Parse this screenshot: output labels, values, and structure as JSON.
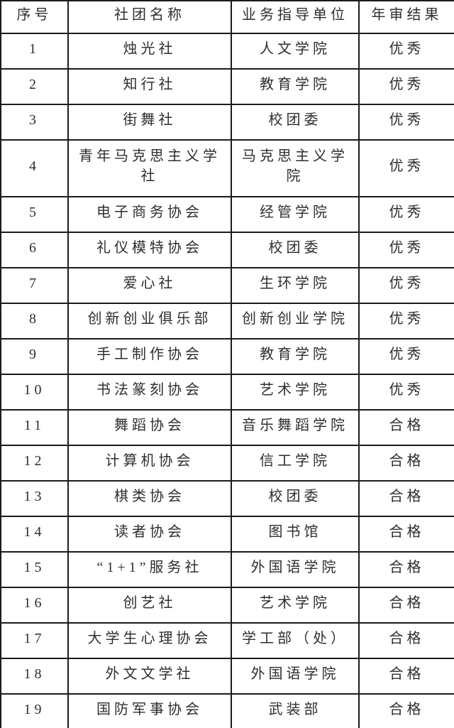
{
  "colors": {
    "border": "#1b1b1b",
    "text": "#2e2e2e",
    "background": "#ffffff"
  },
  "table": {
    "columns": [
      "序号",
      "社团名称",
      "业务指导单位",
      "年审结果"
    ],
    "rows": [
      {
        "no": "1",
        "name": "烛光社",
        "unit": "人文学院",
        "result": "优秀"
      },
      {
        "no": "2",
        "name": "知行社",
        "unit": "教育学院",
        "result": "优秀"
      },
      {
        "no": "3",
        "name": "街舞社",
        "unit": "校团委",
        "result": "优秀"
      },
      {
        "no": "4",
        "name": "青年马克思主义学\n社",
        "unit": "马克思主义学\n院",
        "result": "优秀"
      },
      {
        "no": "5",
        "name": "电子商务协会",
        "unit": "经管学院",
        "result": "优秀"
      },
      {
        "no": "6",
        "name": "礼仪模特协会",
        "unit": "校团委",
        "result": "优秀"
      },
      {
        "no": "7",
        "name": "爱心社",
        "unit": "生环学院",
        "result": "优秀"
      },
      {
        "no": "8",
        "name": "创新创业俱乐部",
        "unit": "创新创业学院",
        "result": "优秀"
      },
      {
        "no": "9",
        "name": "手工制作协会",
        "unit": "教育学院",
        "result": "优秀"
      },
      {
        "no": "10",
        "name": "书法篆刻协会",
        "unit": "艺术学院",
        "result": "优秀"
      },
      {
        "no": "11",
        "name": "舞蹈协会",
        "unit": "音乐舞蹈学院",
        "result": "合格"
      },
      {
        "no": "12",
        "name": "计算机协会",
        "unit": "信工学院",
        "result": "合格"
      },
      {
        "no": "13",
        "name": "棋类协会",
        "unit": "校团委",
        "result": "合格"
      },
      {
        "no": "14",
        "name": "读者协会",
        "unit": "图书馆",
        "result": "合格"
      },
      {
        "no": "15",
        "name": "“1+1”服务社",
        "unit": "外国语学院",
        "result": "合格"
      },
      {
        "no": "16",
        "name": "创艺社",
        "unit": "艺术学院",
        "result": "合格"
      },
      {
        "no": "17",
        "name": "大学生心理协会",
        "unit": "学工部（处）",
        "result": "合格"
      },
      {
        "no": "18",
        "name": "外文文学社",
        "unit": "外国语学院",
        "result": "合格"
      },
      {
        "no": "19",
        "name": "国防军事协会",
        "unit": "武装部",
        "result": "合格"
      }
    ]
  }
}
